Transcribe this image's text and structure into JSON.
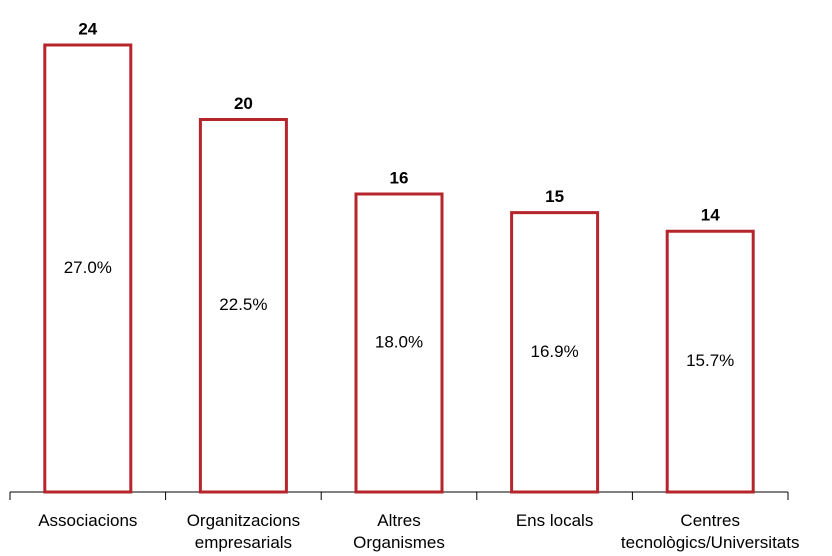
{
  "chart_data": {
    "type": "bar",
    "categories": [
      [
        "Associacions"
      ],
      [
        "Organitzacions",
        "empresarials"
      ],
      [
        "Altres",
        "Organismes"
      ],
      [
        "Ens locals"
      ],
      [
        "Centres",
        "tecnològics/Universitats"
      ]
    ],
    "values": [
      24,
      20,
      16,
      15,
      14
    ],
    "shares": [
      27.0,
      22.5,
      18.0,
      16.9,
      15.7
    ],
    "share_labels": [
      "27.0%",
      "22.5%",
      "18.0%",
      "16.9%",
      "15.7%"
    ],
    "color": "#b5252b",
    "ylim": [
      0,
      24
    ]
  }
}
